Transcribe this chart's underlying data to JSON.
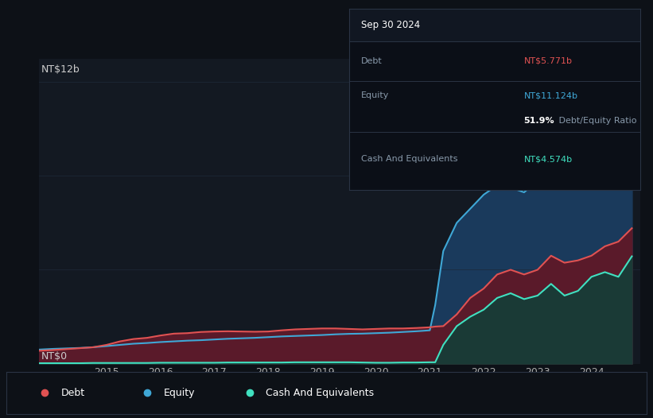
{
  "bg_color": "#0d1117",
  "plot_bg_color": "#131922",
  "grid_color": "#1e2a3a",
  "tooltip": {
    "date": "Sep 30 2024",
    "debt_label": "Debt",
    "debt_value": "NT$5.771b",
    "equity_label": "Equity",
    "equity_value": "NT$11.124b",
    "ratio_bold": "51.9%",
    "ratio_text": " Debt/Equity Ratio",
    "cash_label": "Cash And Equivalents",
    "cash_value": "NT$4.574b"
  },
  "ylabel_top": "NT$12b",
  "ylabel_bot": "NT$0",
  "x_ticks": [
    2015,
    2016,
    2017,
    2018,
    2019,
    2020,
    2021,
    2022,
    2023,
    2024
  ],
  "legend": [
    {
      "label": "Debt",
      "color": "#e05252"
    },
    {
      "label": "Equity",
      "color": "#3fa7d6"
    },
    {
      "label": "Cash And Equivalents",
      "color": "#40e0c0"
    }
  ],
  "debt_color": "#e05252",
  "equity_color": "#3fa7d6",
  "cash_color": "#40e0c0",
  "equity_fill": "#1a3a5c",
  "debt_fill": "#5a1a2a",
  "cash_fill": "#1a3a36",
  "years": [
    2013.75,
    2014.0,
    2014.25,
    2014.5,
    2014.75,
    2015.0,
    2015.25,
    2015.5,
    2015.75,
    2016.0,
    2016.25,
    2016.5,
    2016.75,
    2017.0,
    2017.25,
    2017.5,
    2017.75,
    2018.0,
    2018.25,
    2018.5,
    2018.75,
    2019.0,
    2019.25,
    2019.5,
    2019.75,
    2020.0,
    2020.25,
    2020.5,
    2020.75,
    2021.0,
    2021.1,
    2021.25,
    2021.5,
    2021.75,
    2022.0,
    2022.25,
    2022.5,
    2022.75,
    2023.0,
    2023.25,
    2023.5,
    2023.75,
    2024.0,
    2024.25,
    2024.5,
    2024.75
  ],
  "equity": [
    0.6,
    0.63,
    0.65,
    0.67,
    0.7,
    0.75,
    0.8,
    0.85,
    0.88,
    0.92,
    0.95,
    0.98,
    1.0,
    1.03,
    1.06,
    1.08,
    1.1,
    1.13,
    1.16,
    1.18,
    1.2,
    1.22,
    1.25,
    1.27,
    1.28,
    1.3,
    1.32,
    1.35,
    1.38,
    1.42,
    2.5,
    4.8,
    6.0,
    6.6,
    7.2,
    7.6,
    7.5,
    7.3,
    7.8,
    8.6,
    9.2,
    9.8,
    10.2,
    10.6,
    11.0,
    11.124
  ],
  "debt": [
    0.55,
    0.58,
    0.62,
    0.66,
    0.7,
    0.8,
    0.95,
    1.05,
    1.1,
    1.2,
    1.28,
    1.3,
    1.35,
    1.37,
    1.38,
    1.37,
    1.36,
    1.37,
    1.42,
    1.46,
    1.48,
    1.5,
    1.5,
    1.48,
    1.46,
    1.48,
    1.5,
    1.5,
    1.52,
    1.55,
    1.58,
    1.6,
    2.1,
    2.8,
    3.2,
    3.8,
    4.0,
    3.8,
    4.0,
    4.6,
    4.3,
    4.4,
    4.6,
    5.0,
    5.2,
    5.771
  ],
  "cash": [
    0.02,
    0.02,
    0.02,
    0.02,
    0.03,
    0.03,
    0.03,
    0.03,
    0.03,
    0.04,
    0.04,
    0.04,
    0.04,
    0.04,
    0.05,
    0.05,
    0.05,
    0.05,
    0.05,
    0.06,
    0.06,
    0.06,
    0.06,
    0.06,
    0.05,
    0.04,
    0.04,
    0.05,
    0.05,
    0.06,
    0.06,
    0.8,
    1.6,
    2.0,
    2.3,
    2.8,
    3.0,
    2.75,
    2.9,
    3.4,
    2.9,
    3.1,
    3.7,
    3.9,
    3.7,
    4.574
  ],
  "ylim": [
    0,
    13.0
  ],
  "xlim": [
    2013.75,
    2024.9
  ]
}
